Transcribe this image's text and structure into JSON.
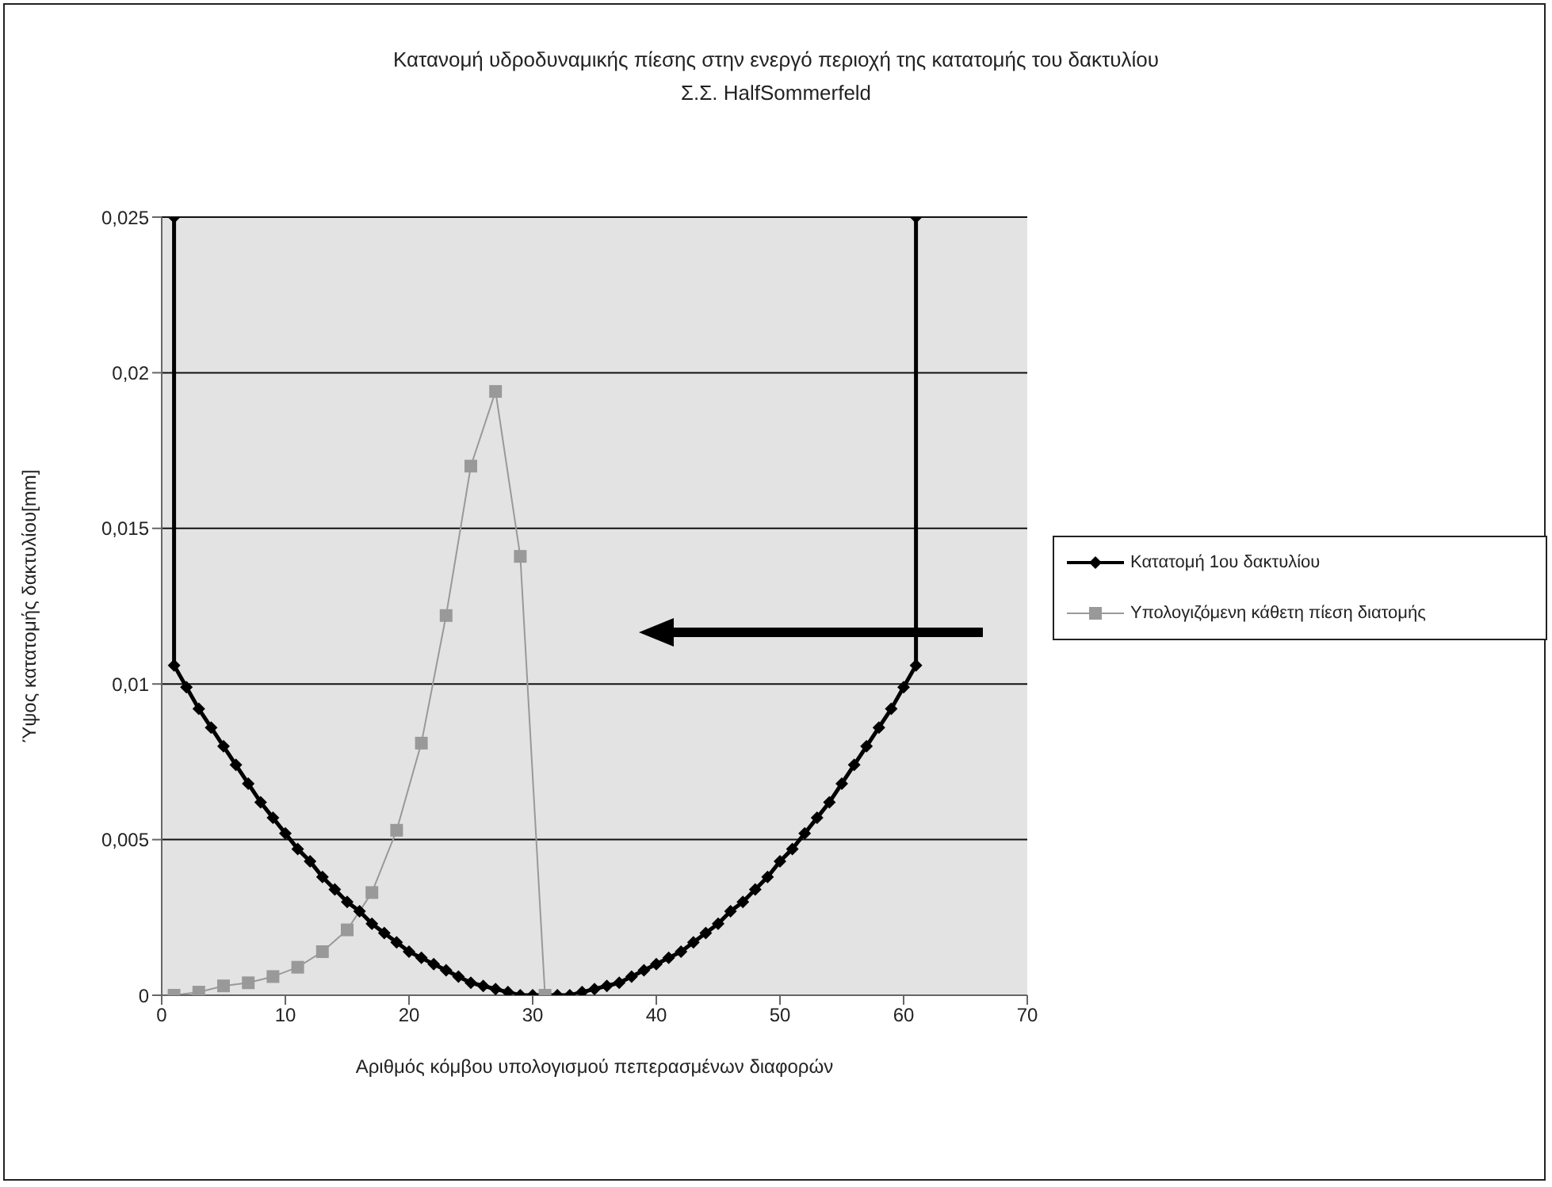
{
  "chart_data": {
    "type": "line",
    "title": "Κατανομή υδροδυναμικής πίεσης στην ενεργό περιοχή της κατατομής του δακτυλίου",
    "subtitle": "Σ.Σ. HalfSommerfeld",
    "xlabel": "Αριθμός κόμβου υπολογισμού πεπερασμένων διαφορών",
    "ylabel": "Ύψος κατατομής δακτυλίου[mm]",
    "xlim": [
      0,
      70
    ],
    "xticks": [
      0,
      10,
      20,
      30,
      40,
      50,
      60,
      70
    ],
    "ylim": [
      0,
      0.025
    ],
    "yticks": [
      0,
      {
        "value": 0.005,
        "label": "0,005"
      },
      {
        "value": 0.01,
        "label": "0,01"
      },
      {
        "value": 0.015,
        "label": "0,015"
      },
      {
        "value": 0.02,
        "label": "0,02"
      },
      {
        "value": 0.025,
        "label": "0,025"
      }
    ],
    "grid": "y",
    "legend": "right",
    "series": [
      {
        "name": "Κατατομή 1ου δακτυλίου",
        "color": "#000000",
        "marker": "diamond",
        "x": [
          1,
          1,
          2,
          3,
          4,
          5,
          6,
          7,
          8,
          9,
          10,
          11,
          12,
          13,
          14,
          15,
          16,
          17,
          18,
          19,
          20,
          21,
          22,
          23,
          24,
          25,
          26,
          27,
          28,
          29,
          30,
          31,
          32,
          33,
          34,
          35,
          36,
          37,
          38,
          39,
          40,
          41,
          42,
          43,
          44,
          45,
          46,
          47,
          48,
          49,
          50,
          51,
          52,
          53,
          54,
          55,
          56,
          57,
          58,
          59,
          60,
          61,
          61
        ],
        "values": [
          0.025,
          0.0106,
          0.0099,
          0.0092,
          0.0086,
          0.008,
          0.0074,
          0.0068,
          0.0062,
          0.0057,
          0.0052,
          0.0047,
          0.0043,
          0.0038,
          0.0034,
          0.003,
          0.0027,
          0.0023,
          0.002,
          0.0017,
          0.0014,
          0.0012,
          0.001,
          0.0008,
          0.0006,
          0.0004,
          0.0003,
          0.0002,
          0.0001,
          0,
          0,
          0,
          0,
          0,
          0.0001,
          0.0002,
          0.0003,
          0.0004,
          0.0006,
          0.0008,
          0.001,
          0.0012,
          0.0014,
          0.0017,
          0.002,
          0.0023,
          0.0027,
          0.003,
          0.0034,
          0.0038,
          0.0043,
          0.0047,
          0.0052,
          0.0057,
          0.0062,
          0.0068,
          0.0074,
          0.008,
          0.0086,
          0.0092,
          0.0099,
          0.0106,
          0.025
        ]
      },
      {
        "name": "Υπολογιζόμενη κάθετη πίεση διατομής",
        "color": "#999999",
        "marker": "square",
        "x": [
          1,
          3,
          5,
          7,
          9,
          11,
          13,
          15,
          17,
          19,
          21,
          23,
          25,
          27,
          29,
          31
        ],
        "values": [
          0,
          0.0001,
          0.0003,
          0.0004,
          0.0006,
          0.0009,
          0.0014,
          0.0021,
          0.0033,
          0.0053,
          0.0081,
          0.0122,
          0.017,
          0.0194,
          0.0141,
          0
        ]
      }
    ]
  }
}
